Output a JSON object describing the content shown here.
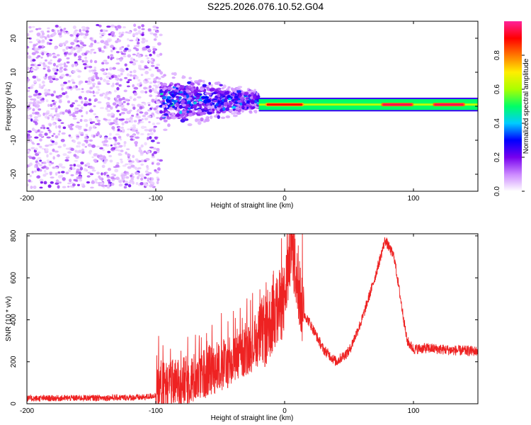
{
  "figure": {
    "title": "S225.2026.076.10.52.G04"
  },
  "chart_data": [
    {
      "type": "heatmap",
      "title": "",
      "xlabel": "Height of straight line (km)",
      "ylabel": "Frequency (Hz)",
      "xlim": [
        -200,
        150
      ],
      "ylim": [
        -25,
        25
      ],
      "xticks": [
        "-200",
        "-100",
        "0",
        "100"
      ],
      "yticks": [
        "-20",
        "-10",
        "0",
        "10",
        "20"
      ],
      "colorbar": {
        "label": "Normalized spectral amplitude",
        "range": [
          0,
          1
        ],
        "ticks": [
          "0.0",
          "0.2",
          "0.4",
          "0.6",
          "0.8"
        ],
        "colors": [
          "#ffffff",
          "#cc88ff",
          "#7700ee",
          "#0000ff",
          "#00ccff",
          "#00ff66",
          "#aaff00",
          "#ffee00",
          "#ff7700",
          "#ff0000",
          "#ff2299"
        ]
      },
      "regions": [
        {
          "x": [
            -200,
            -96
          ],
          "freq_spread": [
            -24,
            24
          ],
          "amplitude": 0.08,
          "description_color": "scattered purple speckle"
        },
        {
          "x": [
            -96,
            -20
          ],
          "freq_spread": [
            -8,
            9
          ],
          "amplitude": 0.3,
          "description_color": "blue/cyan narrowing band"
        },
        {
          "x": [
            -20,
            150
          ],
          "freq_center": 0.5,
          "freq_halfwidth": 1.6,
          "amplitude": 0.5,
          "description_color": "green band with red core"
        }
      ],
      "hot_segments": [
        {
          "x": [
            -15,
            15
          ],
          "amplitude": 0.9
        },
        {
          "x": [
            75,
            100
          ],
          "amplitude": 0.95
        },
        {
          "x": [
            115,
            140
          ],
          "amplitude": 0.95
        }
      ]
    },
    {
      "type": "line",
      "title": "",
      "xlabel": "Height of straight line (km)",
      "ylabel": "SNR (10 * v/v)",
      "xlim": [
        -200,
        150
      ],
      "ylim": [
        0,
        810
      ],
      "xticks": [
        "-200",
        "-100",
        "0",
        "100"
      ],
      "yticks": [
        "0",
        "200",
        "400",
        "600",
        "800"
      ],
      "color": "#ee2222",
      "x": [
        -200,
        -150,
        -110,
        -100,
        -95,
        -80,
        -60,
        -40,
        -20,
        -10,
        0,
        5,
        10,
        15,
        20,
        30,
        40,
        50,
        60,
        70,
        78,
        85,
        90,
        95,
        100,
        110,
        130,
        150
      ],
      "y": [
        25,
        28,
        30,
        40,
        80,
        100,
        150,
        200,
        300,
        400,
        500,
        760,
        560,
        430,
        380,
        260,
        200,
        250,
        400,
        600,
        780,
        700,
        500,
        300,
        260,
        265,
        255,
        250
      ],
      "noise_envelope": [
        {
          "x": [
            -200,
            -100
          ],
          "amp": 15
        },
        {
          "x": [
            -100,
            -20
          ],
          "amp": 120
        },
        {
          "x": [
            -20,
            15
          ],
          "amp": 180
        },
        {
          "x": [
            15,
            150
          ],
          "amp": 25
        }
      ]
    }
  ]
}
